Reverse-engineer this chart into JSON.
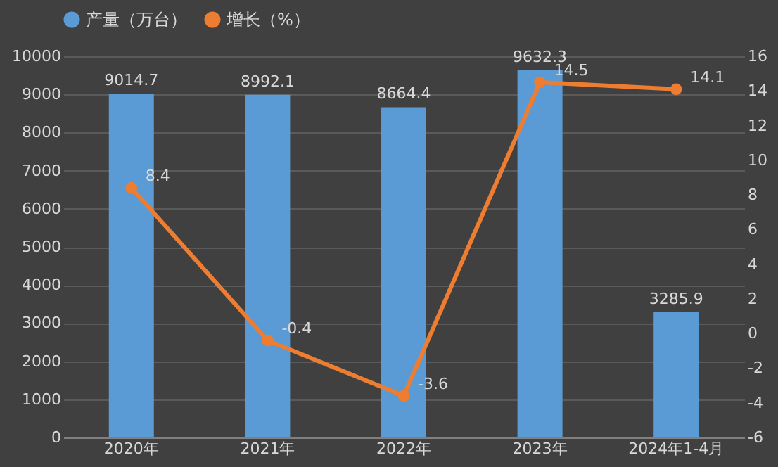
{
  "chart_data": {
    "type": "bar",
    "categories": [
      "2020年",
      "2021年",
      "2022年",
      "2023年",
      "2024年1-4月"
    ],
    "series": [
      {
        "name": "产量（万台）",
        "color": "#5b9bd5",
        "values": [
          9014.7,
          8992.1,
          8664.4,
          9632.3,
          3285.9
        ]
      },
      {
        "name": "增长（%）",
        "type": "line",
        "axis": "y2",
        "color": "#ed7d31",
        "values": [
          8.4,
          -0.4,
          -3.6,
          14.5,
          14.1
        ]
      }
    ],
    "ylim": [
      0,
      10000
    ],
    "yticks": [
      0,
      1000,
      2000,
      3000,
      4000,
      5000,
      6000,
      7000,
      8000,
      9000,
      10000
    ],
    "y2lim": [
      -6,
      16
    ],
    "y2ticks": [
      -6,
      -4,
      -2,
      0,
      2,
      4,
      6,
      8,
      10,
      12,
      14,
      16
    ],
    "grid": "y",
    "legend": "top",
    "marker": "circle",
    "data_labels": true
  }
}
